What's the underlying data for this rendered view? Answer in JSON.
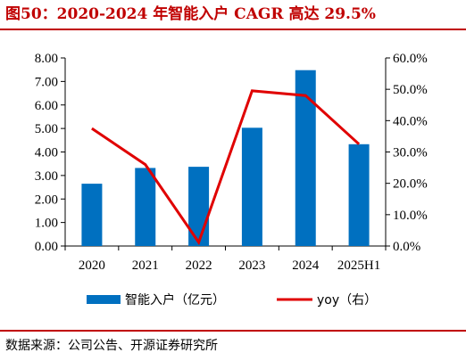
{
  "title": "图50：2020-2024 年智能入户 CAGR 高达 29.5%",
  "source": "数据来源：公司公告、开源证券研究所",
  "chart_data": {
    "type": "bar",
    "categories": [
      "2020",
      "2021",
      "2022",
      "2023",
      "2024",
      "2025H1"
    ],
    "series": [
      {
        "name": "智能入户（亿元）",
        "type": "bar",
        "axis": "left",
        "color": "#0070c0",
        "values": [
          2.65,
          3.32,
          3.37,
          5.03,
          7.48,
          4.33
        ]
      },
      {
        "name": "yoy（右）",
        "type": "line",
        "axis": "right",
        "color": "#e00000",
        "values": [
          37.5,
          26.0,
          1.2,
          49.5,
          48.0,
          32.5
        ]
      }
    ],
    "y_left": {
      "min": 0,
      "max": 8,
      "ticks": [
        "0.00",
        "1.00",
        "2.00",
        "3.00",
        "4.00",
        "5.00",
        "6.00",
        "7.00",
        "8.00"
      ]
    },
    "y_right": {
      "min": 0,
      "max": 60,
      "ticks": [
        "0.0%",
        "10.0%",
        "20.0%",
        "30.0%",
        "40.0%",
        "50.0%",
        "60.0%"
      ]
    },
    "legend": {
      "position": "bottom"
    },
    "grid": false
  }
}
